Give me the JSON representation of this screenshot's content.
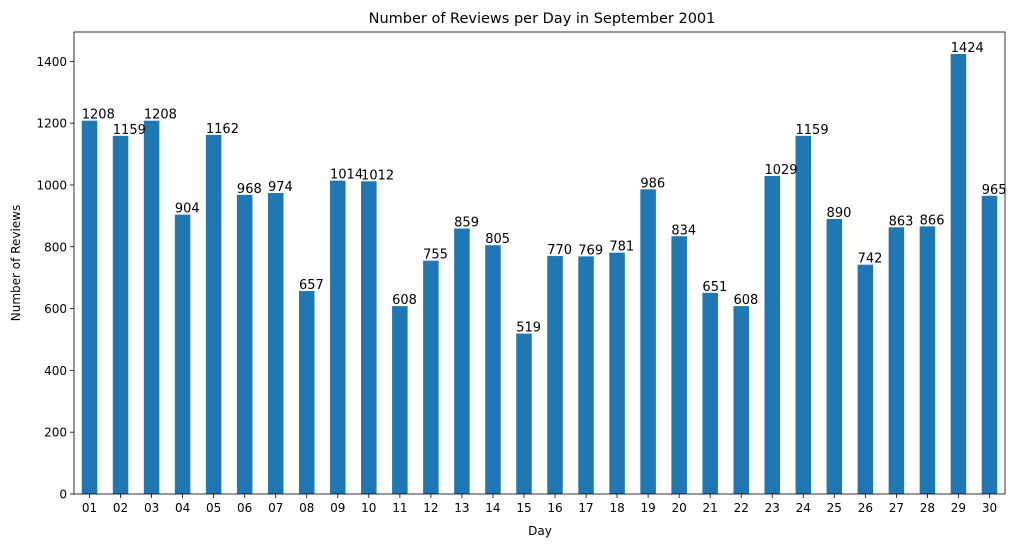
{
  "chart_data": {
    "type": "bar",
    "title": "Number of Reviews per Day in September 2001",
    "xlabel": "Day",
    "ylabel": "Number of Reviews",
    "categories": [
      "01",
      "02",
      "03",
      "04",
      "05",
      "06",
      "07",
      "08",
      "09",
      "10",
      "11",
      "12",
      "13",
      "14",
      "15",
      "16",
      "17",
      "18",
      "19",
      "20",
      "21",
      "22",
      "23",
      "24",
      "25",
      "26",
      "27",
      "28",
      "29",
      "30"
    ],
    "values": [
      1208,
      1159,
      1208,
      904,
      1162,
      968,
      974,
      657,
      1014,
      1012,
      608,
      755,
      859,
      805,
      519,
      770,
      769,
      781,
      986,
      834,
      651,
      608,
      1029,
      1159,
      890,
      742,
      863,
      866,
      1424,
      965
    ],
    "ylim": [
      0,
      1495
    ],
    "yticks": [
      0,
      200,
      400,
      600,
      800,
      1000,
      1200,
      1400
    ],
    "bar_color": "#1f77b4",
    "grid": false,
    "legend": false,
    "data_labels": true
  }
}
